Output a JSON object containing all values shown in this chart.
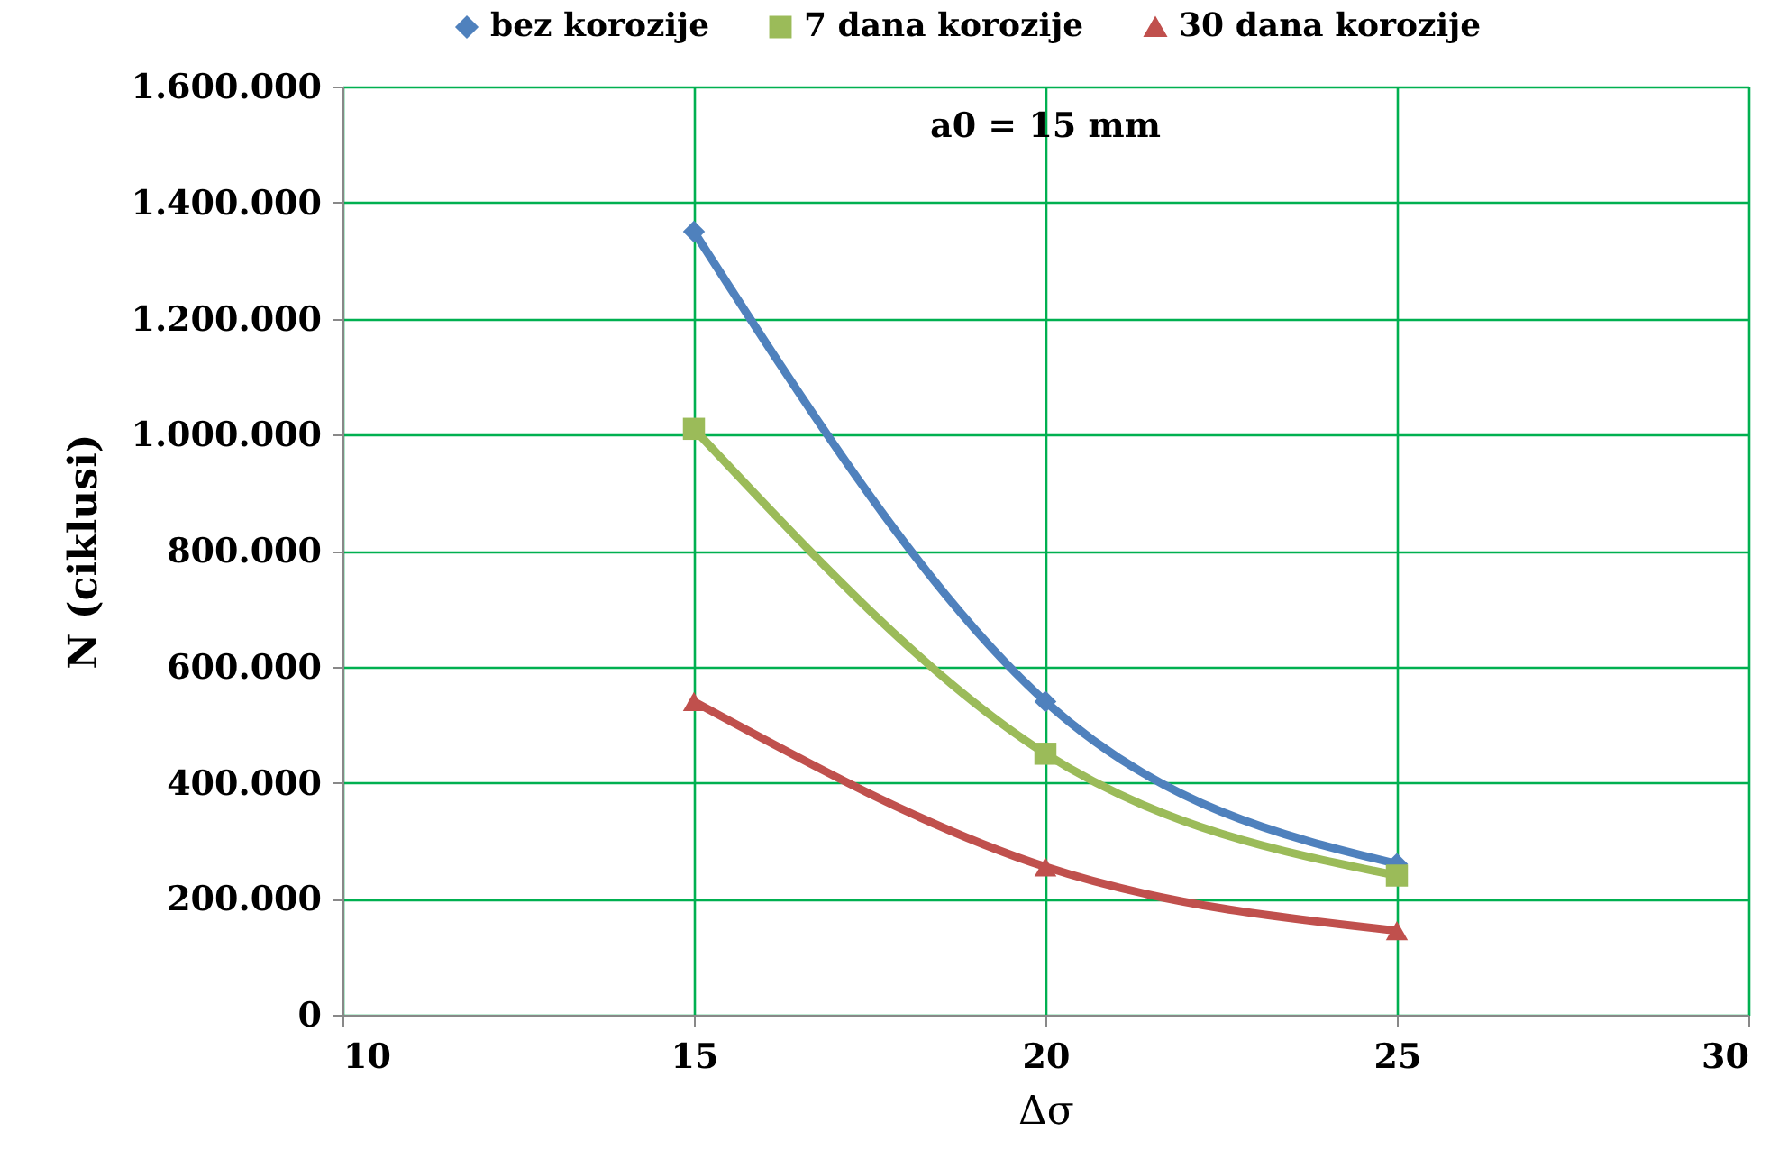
{
  "chart_data": {
    "type": "line",
    "title": "a0 = 15 mm",
    "xlabel": "Δσ",
    "ylabel": "N (ciklusi)",
    "x": [
      15,
      20,
      25
    ],
    "series": [
      {
        "name": "bez korozije",
        "color": "#4f81bd",
        "marker": "diamond",
        "values": [
          1350000,
          540000,
          260000
        ]
      },
      {
        "name": "7 dana korozije",
        "color": "#9bbb59",
        "marker": "square",
        "values": [
          1010000,
          450000,
          240000
        ]
      },
      {
        "name": "30 dana korozije",
        "color": "#c0504d",
        "marker": "triangle",
        "values": [
          540000,
          255000,
          145000
        ]
      }
    ],
    "xlim": [
      10,
      30
    ],
    "xticks": [
      10,
      15,
      20,
      25,
      30
    ],
    "ylim": [
      0,
      1600000
    ],
    "yticks": [
      0,
      {
        "value": 200000,
        "label": "200.000"
      },
      {
        "value": 400000,
        "label": "400.000"
      },
      {
        "value": 600000,
        "label": "600.000"
      },
      {
        "value": 800000,
        "label": "800.000"
      },
      {
        "value": 1000000,
        "label": "1.000.000"
      },
      {
        "value": 1200000,
        "label": "1.200.000"
      },
      {
        "value": 1400000,
        "label": "1.400.000"
      },
      {
        "value": 1600000,
        "label": "1.600.000"
      }
    ],
    "grid": true,
    "legend": "top"
  }
}
